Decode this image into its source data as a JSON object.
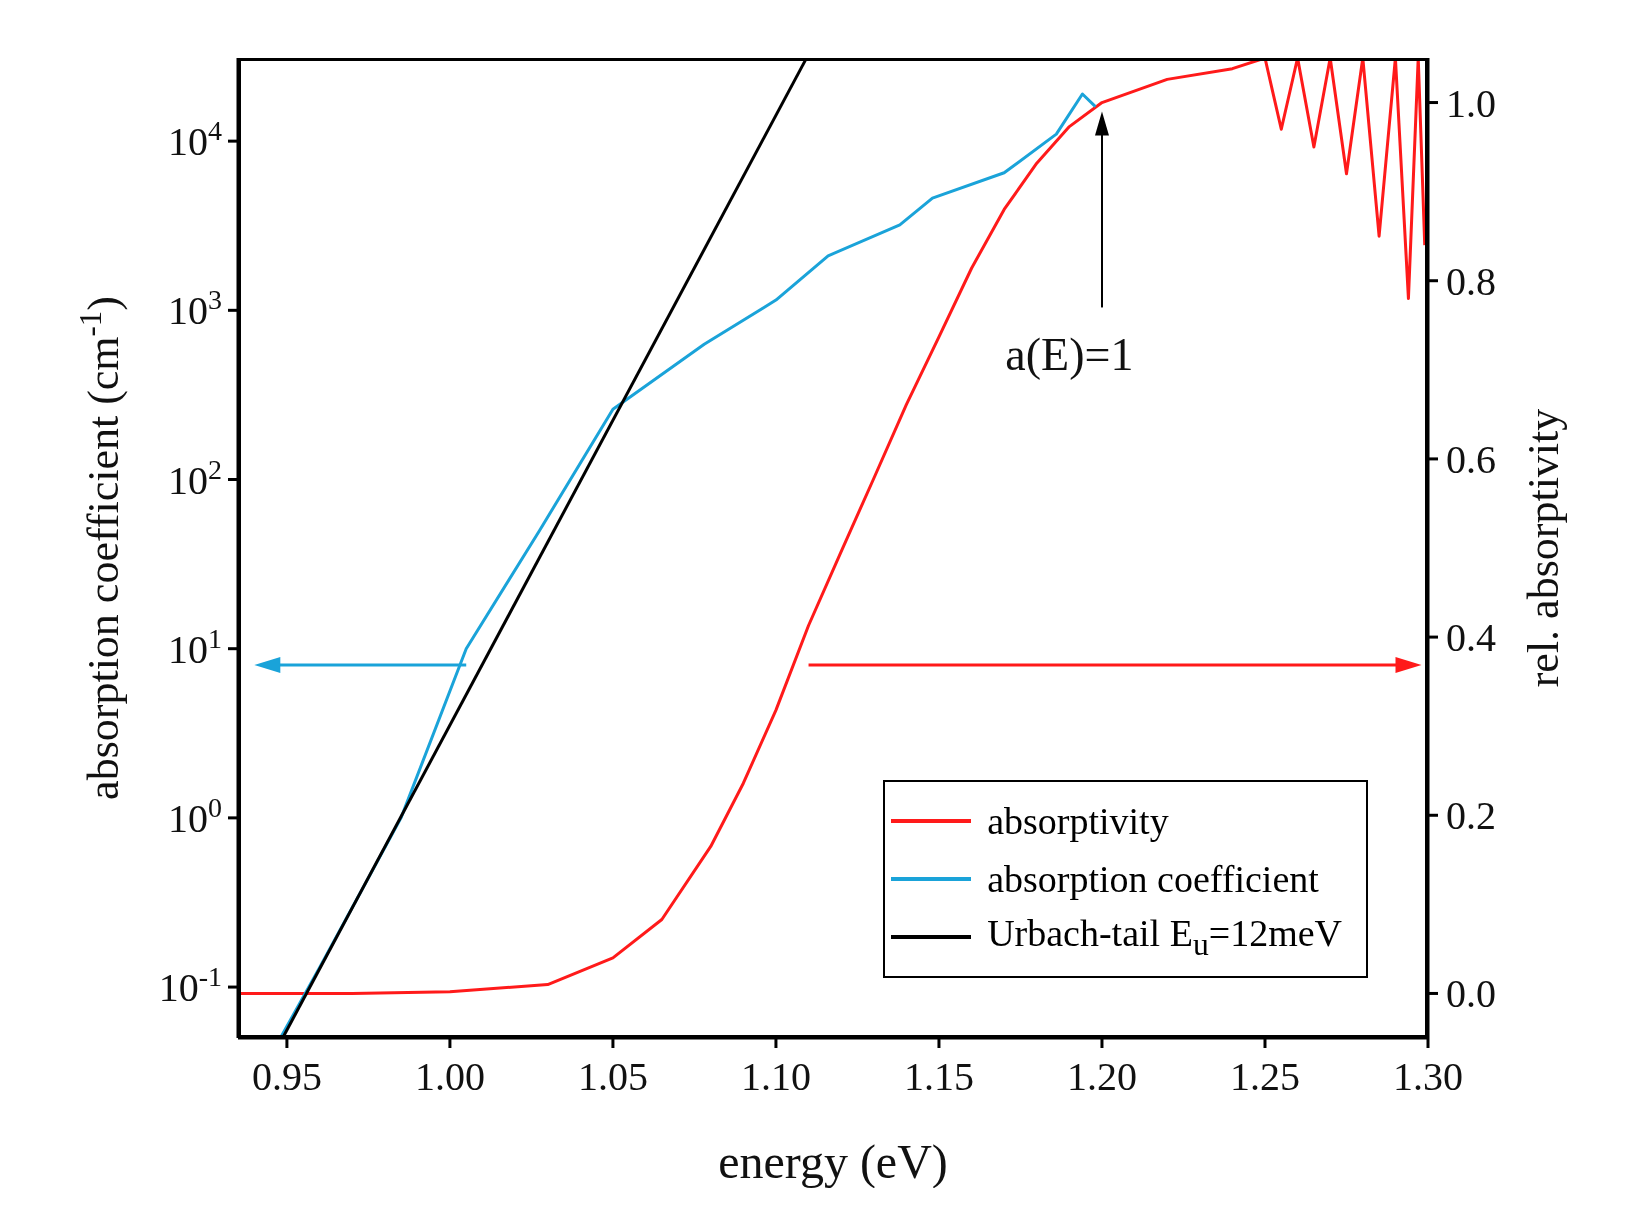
{
  "chart_data": {
    "type": "line",
    "xlabel": "energy (eV)",
    "ylabel": "absorption coefficient (cm$^{-1}$)",
    "y2label": "rel. absorptivity",
    "xlim": [
      0.935,
      1.3
    ],
    "xticks": [
      0.95,
      {
        "value": 1,
        "label": "1.00"
      },
      1.05,
      {
        "value": 1.1,
        "label": "1.10"
      },
      1.15,
      {
        "value": 1.2,
        "label": "1.20"
      },
      1.25,
      {
        "value": 1.3,
        "label": "1.30"
      }
    ],
    "ylim": [
      0.05,
      31000
    ],
    "log": "y",
    "yticks": [
      {
        "value": 0.1,
        "label": "10$^{-1}$"
      },
      {
        "value": 1,
        "label": "10$^{0}$"
      },
      {
        "value": 10,
        "label": "10$^{1}$"
      },
      {
        "value": 100,
        "label": "10$^{2}$"
      },
      {
        "value": 1000,
        "label": "10$^{3}$"
      },
      {
        "value": 10000,
        "label": "10$^{4}$"
      }
    ],
    "y2lim": [
      -0.05,
      1.05
    ],
    "y2ticks": [
      {
        "value": 0,
        "label": "0.0"
      },
      {
        "value": 0.2,
        "label": "0.2"
      },
      {
        "value": 0.4,
        "label": "0.4"
      },
      {
        "value": 0.6,
        "label": "0.6"
      },
      {
        "value": 0.8,
        "label": "0.8"
      },
      {
        "value": 1,
        "label": "1.0"
      }
    ],
    "series": [
      {
        "name": "absorptivity",
        "color": "#ff1a1a",
        "axis": "y2",
        "x": [
          0.935,
          0.97,
          1.0,
          1.03,
          1.05,
          1.065,
          1.08,
          1.09,
          1.1,
          1.11,
          1.12,
          1.13,
          1.14,
          1.15,
          1.16,
          1.17,
          1.18,
          1.19,
          1.2,
          1.22,
          1.24,
          1.25,
          1.255,
          1.26,
          1.265,
          1.27,
          1.275,
          1.28,
          1.285,
          1.29,
          1.294,
          1.297,
          1.299
        ],
        "values": [
          0.0,
          0.0,
          0.002,
          0.01,
          0.04,
          0.083,
          0.165,
          0.236,
          0.318,
          0.413,
          0.496,
          0.578,
          0.661,
          0.737,
          0.814,
          0.88,
          0.932,
          0.973,
          1.0,
          1.026,
          1.038,
          1.05,
          0.97,
          1.05,
          0.95,
          1.05,
          0.92,
          1.05,
          0.85,
          1.05,
          0.78,
          1.05,
          0.84
        ]
      },
      {
        "name": "absorption coefficient",
        "color": "#1aa3d9",
        "x": [
          0.948,
          0.96,
          0.985,
          1.005,
          1.0275,
          1.05,
          1.078,
          1.1,
          1.116,
          1.138,
          1.148,
          1.17,
          1.186,
          1.194,
          1.198
        ],
        "values": [
          0.05,
          0.13,
          1,
          10,
          50,
          260,
          630,
          1150,
          2100,
          3200,
          4600,
          6500,
          11000,
          19000,
          16000
        ]
      },
      {
        "name": "Urbach-tail E$_{u}$=12meV",
        "color": "#000000",
        "x": [
          0.9487,
          1.109
        ],
        "values": [
          0.05,
          30000
        ]
      }
    ],
    "annotations": [
      "a(E)=1"
    ],
    "legend": "bottom right",
    "marker": "none",
    "line_style": "solid",
    "grid": false
  }
}
